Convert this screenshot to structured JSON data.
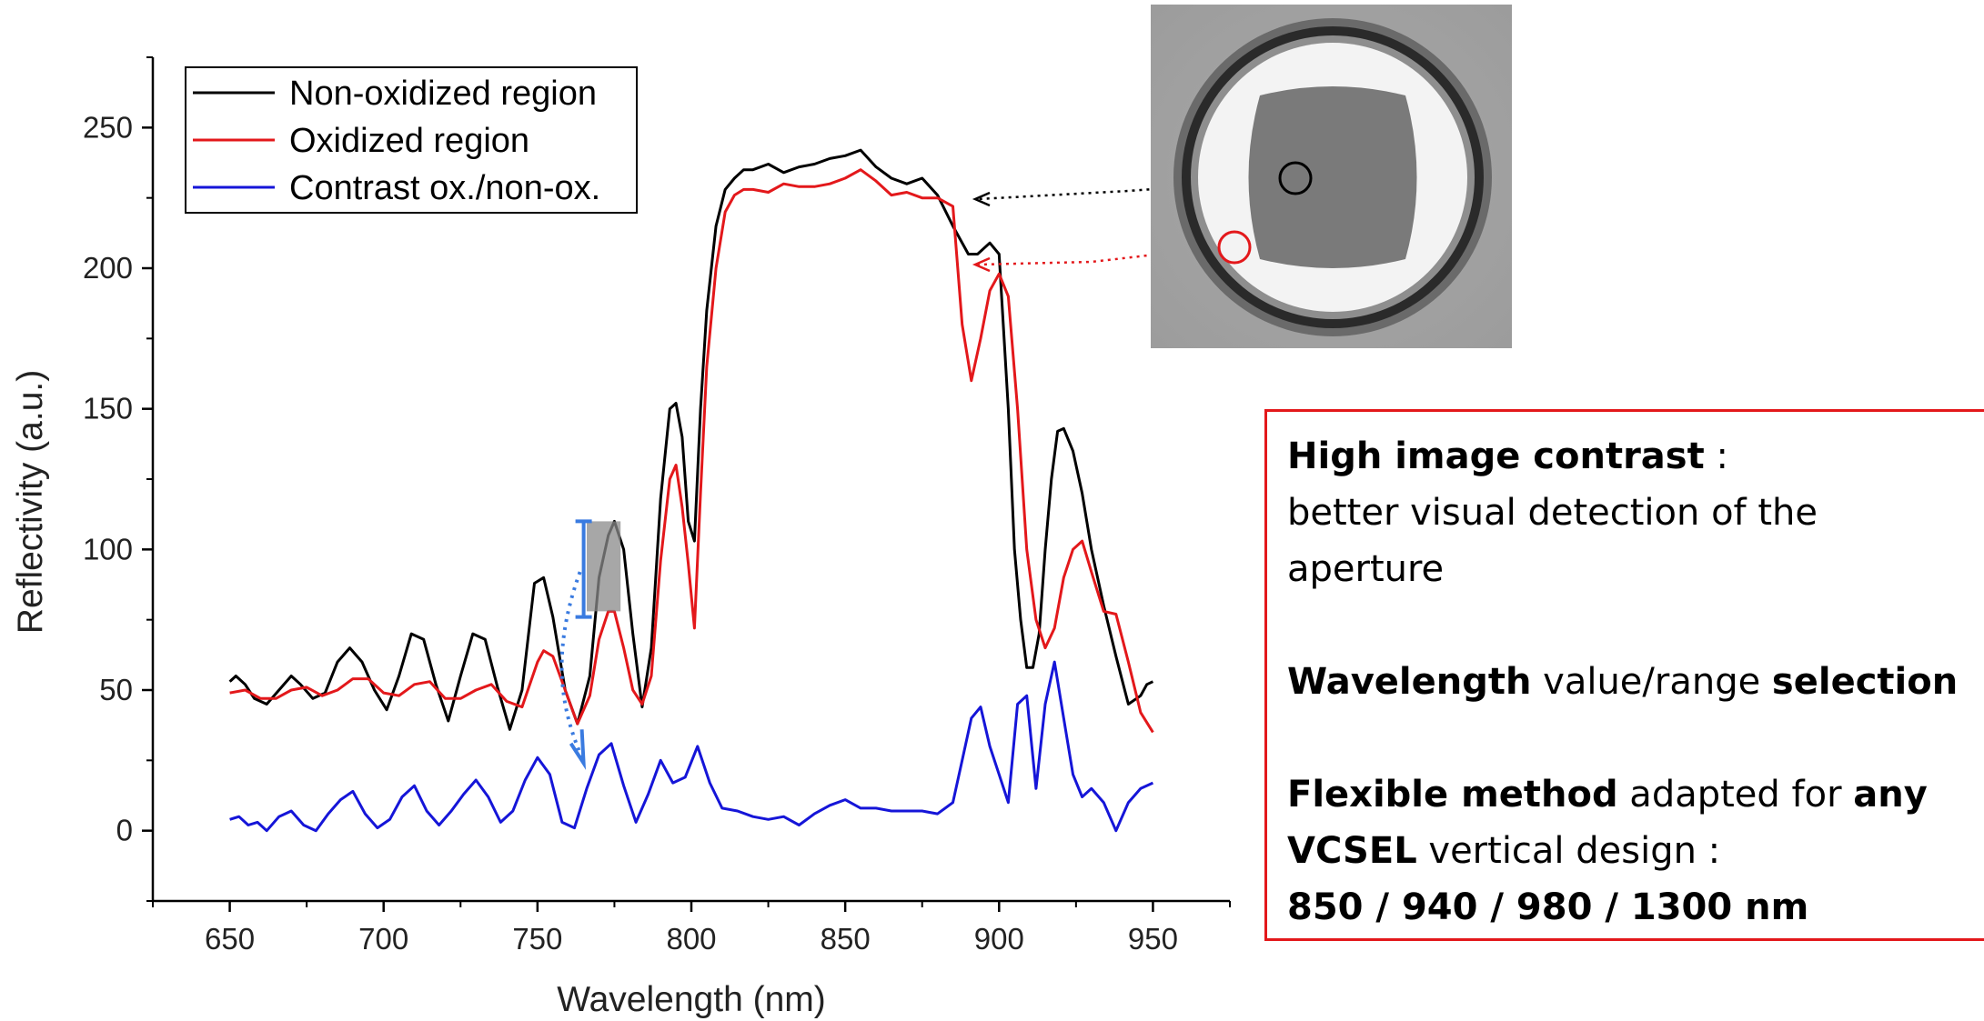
{
  "chart_data": {
    "type": "line",
    "xlabel": "Wavelength (nm)",
    "ylabel": "Reflectivity (a.u.)",
    "xlim": [
      625,
      975
    ],
    "ylim": [
      -25,
      275
    ],
    "xticks": [
      650,
      700,
      750,
      800,
      850,
      900,
      950
    ],
    "yticks": [
      0,
      50,
      100,
      150,
      200,
      250
    ],
    "legend_position": "top-left",
    "grid": false,
    "series": [
      {
        "name": "Non-oxidized region",
        "color": "#000000",
        "x": [
          650,
          652,
          655,
          658,
          662,
          666,
          670,
          673,
          677,
          681,
          685,
          689,
          693,
          697,
          701,
          705,
          709,
          713,
          717,
          721,
          725,
          729,
          733,
          737,
          741,
          745,
          749,
          752,
          755,
          759,
          763,
          767,
          770,
          773,
          775,
          778,
          781,
          784,
          787,
          790,
          793,
          795,
          797,
          799,
          801,
          803,
          805,
          808,
          811,
          814,
          817,
          820,
          825,
          830,
          835,
          840,
          845,
          850,
          855,
          860,
          865,
          870,
          875,
          880,
          885,
          890,
          893,
          897,
          900,
          903,
          905,
          907,
          909,
          911,
          913,
          915,
          917,
          919,
          921,
          924,
          927,
          930,
          934,
          938,
          942,
          946,
          948,
          950
        ],
        "values": [
          53,
          55,
          52,
          47,
          45,
          50,
          55,
          52,
          47,
          49,
          60,
          65,
          60,
          50,
          43,
          55,
          70,
          68,
          52,
          39,
          55,
          70,
          68,
          51,
          36,
          50,
          88,
          90,
          76,
          50,
          38,
          55,
          90,
          105,
          110,
          100,
          70,
          44,
          65,
          118,
          150,
          152,
          140,
          110,
          103,
          150,
          185,
          215,
          228,
          232,
          235,
          235,
          237,
          234,
          236,
          237,
          239,
          240,
          242,
          236,
          232,
          230,
          232,
          226,
          215,
          205,
          205,
          209,
          205,
          150,
          100,
          75,
          58,
          58,
          70,
          100,
          125,
          142,
          143,
          135,
          120,
          100,
          80,
          62,
          45,
          48,
          52,
          53
        ]
      },
      {
        "name": "Oxidized region",
        "color": "#e3181b",
        "x": [
          650,
          655,
          660,
          665,
          670,
          675,
          680,
          685,
          690,
          695,
          700,
          705,
          710,
          715,
          720,
          725,
          730,
          735,
          740,
          745,
          750,
          752,
          755,
          759,
          763,
          767,
          770,
          773,
          775,
          778,
          781,
          784,
          787,
          790,
          793,
          795,
          797,
          799,
          801,
          803,
          805,
          808,
          811,
          814,
          817,
          820,
          825,
          830,
          835,
          840,
          845,
          850,
          855,
          860,
          865,
          870,
          875,
          880,
          885,
          888,
          891,
          894,
          897,
          900,
          903,
          906,
          909,
          912,
          915,
          918,
          921,
          924,
          927,
          930,
          934,
          938,
          942,
          946,
          950
        ],
        "values": [
          49,
          50,
          47,
          47,
          50,
          51,
          48,
          50,
          54,
          54,
          49,
          48,
          52,
          53,
          47,
          47,
          50,
          52,
          46,
          44,
          60,
          64,
          62,
          50,
          38,
          48,
          68,
          78,
          78,
          65,
          50,
          45,
          55,
          96,
          125,
          130,
          115,
          95,
          72,
          120,
          165,
          200,
          220,
          226,
          228,
          228,
          227,
          230,
          229,
          229,
          230,
          232,
          235,
          231,
          226,
          227,
          225,
          225,
          222,
          180,
          160,
          175,
          192,
          198,
          190,
          150,
          100,
          75,
          65,
          72,
          90,
          100,
          103,
          92,
          78,
          77,
          60,
          42,
          35
        ]
      },
      {
        "name": "Contrast ox./non-ox.",
        "color": "#1515d8",
        "x": [
          650,
          653,
          656,
          659,
          662,
          666,
          670,
          674,
          678,
          682,
          686,
          690,
          694,
          698,
          702,
          706,
          710,
          714,
          718,
          722,
          726,
          730,
          734,
          738,
          742,
          746,
          750,
          754,
          758,
          762,
          766,
          770,
          774,
          778,
          782,
          786,
          790,
          794,
          798,
          802,
          806,
          810,
          815,
          820,
          825,
          830,
          835,
          840,
          845,
          850,
          855,
          860,
          865,
          870,
          875,
          880,
          885,
          888,
          891,
          894,
          897,
          900,
          903,
          906,
          909,
          912,
          915,
          918,
          921,
          924,
          927,
          930,
          934,
          938,
          942,
          946,
          950
        ],
        "values": [
          4,
          5,
          2,
          3,
          0,
          5,
          7,
          2,
          0,
          6,
          11,
          14,
          6,
          1,
          4,
          12,
          16,
          7,
          2,
          7,
          13,
          18,
          12,
          3,
          7,
          18,
          26,
          20,
          3,
          1,
          15,
          27,
          31,
          16,
          3,
          13,
          25,
          17,
          19,
          30,
          17,
          8,
          7,
          5,
          4,
          5,
          2,
          6,
          9,
          11,
          8,
          8,
          7,
          7,
          7,
          6,
          10,
          25,
          40,
          44,
          30,
          20,
          10,
          45,
          48,
          15,
          45,
          60,
          40,
          20,
          12,
          15,
          10,
          0,
          10,
          15,
          17
        ]
      }
    ],
    "annotations": {
      "box_title": "High image contrast",
      "box_title_suffix": " :",
      "box_line2": "better visual detection of the",
      "box_line3": "aperture",
      "wl_bold1": "Wavelength",
      "wl_normal": " value/range ",
      "wl_bold2": "selection",
      "flex_bold1": "Flexible method",
      "flex_normal1": " adapted for ",
      "flex_bold2": "any",
      "flex_bold3": "VCSEL",
      "flex_normal2": " vertical design :",
      "wavelengths": "850 / 940 / 980 / 1300 nm"
    }
  }
}
